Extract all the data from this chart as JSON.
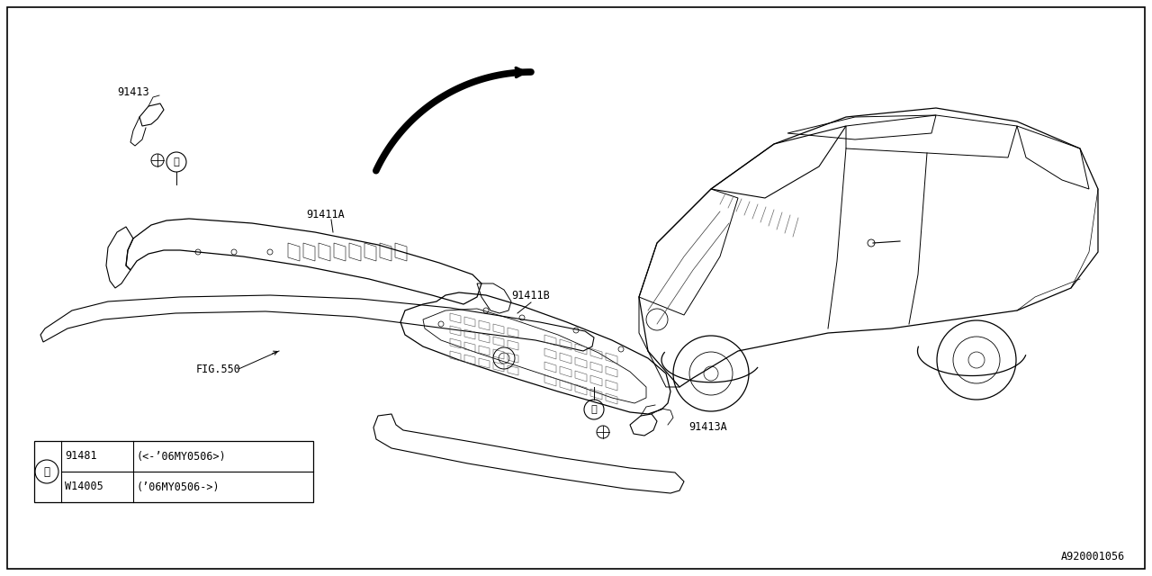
{
  "bg_color": "#ffffff",
  "border_color": "#000000",
  "text_color": "#000000",
  "diagram_code": "A920001056",
  "font_size": 8.5,
  "font_family": "DejaVu Sans Mono",
  "legend_rows": [
    {
      "part": "91481",
      "desc": "(<-’06MY0506>)"
    },
    {
      "part": "W14005",
      "desc": "(’06MY0506->)"
    }
  ]
}
